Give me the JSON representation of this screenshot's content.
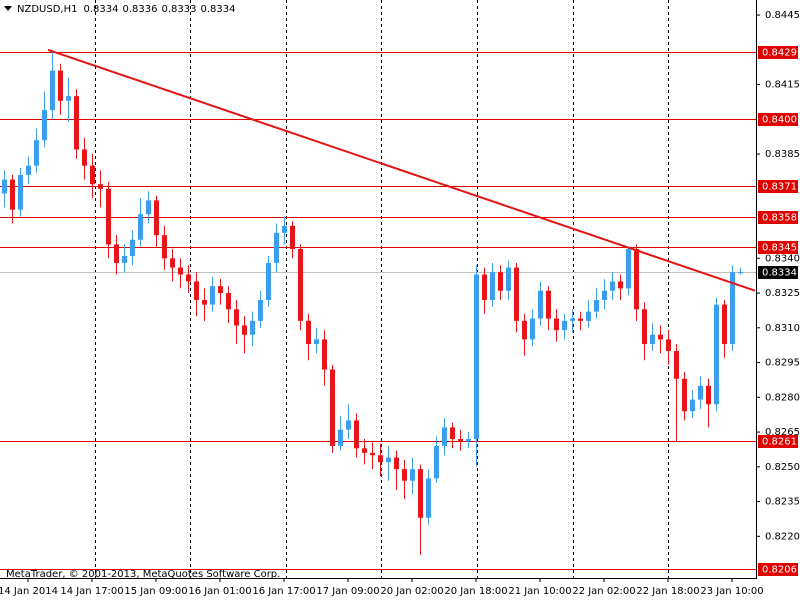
{
  "chart_data": {
    "type": "candlestick",
    "symbol": "NZDUSD,H1",
    "footer": "MetaTrader, © 2001-2013, MetaQuotes Software Corp.",
    "up_color": "#3a9ff0",
    "down_color": "#e8141a",
    "level_color": "#e00000",
    "current_color": "#c0c0c0",
    "trend_color": "#e31414",
    "grid": false,
    "ylim": [
      0.8202,
      0.84515
    ],
    "yticks": [
      {
        "value": 0.8445,
        "label": "0.8445"
      },
      {
        "value": 0.8415,
        "label": "0.8415"
      },
      {
        "value": 0.8385,
        "label": "0.8385"
      },
      {
        "value": 0.834,
        "label": "0.8340"
      },
      {
        "value": 0.8325,
        "label": "0.8325"
      },
      {
        "value": 0.831,
        "label": "0.8310"
      },
      {
        "value": 0.8295,
        "label": "0.8295"
      },
      {
        "value": 0.828,
        "label": "0.8280"
      },
      {
        "value": 0.8265,
        "label": "0.8265"
      },
      {
        "value": 0.825,
        "label": "0.8250"
      },
      {
        "value": 0.8235,
        "label": "0.8235"
      },
      {
        "value": 0.822,
        "label": "0.8220"
      }
    ],
    "levels": [
      {
        "value": 0.8429,
        "label": "0.8429"
      },
      {
        "value": 0.84,
        "label": "0.8400"
      },
      {
        "value": 0.8371,
        "label": "0.8371"
      },
      {
        "value": 0.8358,
        "label": "0.8358"
      },
      {
        "value": 0.8345,
        "label": "0.8345"
      },
      {
        "value": 0.8261,
        "label": "0.8261"
      },
      {
        "value": 0.8206,
        "label": "0.8206"
      }
    ],
    "current_price": {
      "value": 0.8334,
      "label": "0.8334"
    },
    "trendline": {
      "from": {
        "index": 5.5,
        "price": 0.843
      },
      "to": {
        "index": 93.875,
        "price": 0.8326
      }
    },
    "categories": [
      null,
      null,
      null,
      "14 Jan 2014",
      null,
      null,
      null,
      null,
      null,
      null,
      null,
      "14 Jan 17:00",
      null,
      null,
      null,
      null,
      null,
      null,
      null,
      "15 Jan 09:00",
      null,
      null,
      null,
      null,
      null,
      null,
      null,
      "16 Jan 01:00",
      null,
      null,
      null,
      null,
      null,
      null,
      null,
      "16 Jan 17:00",
      null,
      null,
      null,
      null,
      null,
      null,
      null,
      "17 Jan 09:00",
      null,
      null,
      null,
      null,
      null,
      null,
      null,
      "20 Jan 02:00",
      null,
      null,
      null,
      null,
      null,
      null,
      null,
      "20 Jan 18:00",
      null,
      null,
      null,
      null,
      null,
      null,
      null,
      "21 Jan 10:00",
      null,
      null,
      null,
      null,
      null,
      null,
      null,
      "22 Jan 02:00",
      null,
      null,
      null,
      null,
      null,
      null,
      null,
      "22 Jan 18:00",
      null,
      null,
      null,
      null,
      null,
      null,
      null,
      "23 Jan 10:00",
      null
    ],
    "open": [
      0.8368,
      0.8374,
      0.8361,
      0.8376,
      0.838,
      0.8391,
      0.8404,
      0.8421,
      0.8408,
      0.841,
      0.8387,
      0.838,
      0.8372,
      0.837,
      0.8346,
      0.8338,
      0.8341,
      0.8348,
      0.8359,
      0.8365,
      0.835,
      0.834,
      0.8336,
      0.8333,
      0.833,
      0.8322,
      0.832,
      0.8328,
      0.8325,
      0.8318,
      0.8311,
      0.8307,
      0.8313,
      0.8322,
      0.8338,
      0.8351,
      0.8354,
      0.8344,
      0.8313,
      0.8303,
      0.8305,
      0.8292,
      0.8259,
      0.8266,
      0.827,
      0.8258,
      0.8256,
      0.8255,
      0.8252,
      0.8254,
      0.8249,
      0.8244,
      0.8249,
      0.8228,
      0.8245,
      0.8259,
      0.8267,
      0.8262,
      0.8261,
      0.8262,
      0.8333,
      0.8322,
      0.8334,
      0.8326,
      0.8336,
      0.8313,
      0.8305,
      0.8314,
      0.8326,
      0.8314,
      0.8309,
      0.8313,
      0.8314,
      0.8313,
      0.8317,
      0.8322,
      0.8326,
      0.833,
      0.8327,
      0.8344,
      0.8318,
      0.8303,
      0.8307,
      0.8305,
      0.83,
      0.8288,
      0.8274,
      0.8279,
      0.8285,
      0.8277,
      0.832,
      0.8303,
      0.8334
    ],
    "high": [
      0.8378,
      0.8376,
      0.8379,
      0.8384,
      0.8396,
      0.8412,
      0.8429,
      0.8424,
      0.8418,
      0.8413,
      0.8392,
      0.8385,
      0.8378,
      0.8373,
      0.835,
      0.8346,
      0.8352,
      0.8366,
      0.8369,
      0.8367,
      0.8354,
      0.8344,
      0.834,
      0.8337,
      0.8334,
      0.8327,
      0.8332,
      0.8331,
      0.8328,
      0.8322,
      0.8315,
      0.8317,
      0.8326,
      0.8341,
      0.8355,
      0.8358,
      0.8356,
      0.8346,
      0.8316,
      0.831,
      0.8309,
      0.8294,
      0.8272,
      0.8277,
      0.8273,
      0.8262,
      0.8261,
      0.826,
      0.8259,
      0.8257,
      0.8253,
      0.8254,
      0.8251,
      0.8249,
      0.8263,
      0.8271,
      0.8269,
      0.8266,
      0.8265,
      0.8337,
      0.8336,
      0.8338,
      0.8337,
      0.8339,
      0.8338,
      0.8316,
      0.8318,
      0.833,
      0.8328,
      0.8318,
      0.8316,
      0.8318,
      0.8317,
      0.8322,
      0.8327,
      0.8331,
      0.8334,
      0.8333,
      0.8345,
      0.8346,
      0.8321,
      0.8312,
      0.8311,
      0.8309,
      0.8303,
      0.8291,
      0.8283,
      0.8289,
      0.8288,
      0.8323,
      0.8322,
      0.8337,
      0.8336
    ],
    "low": [
      0.8362,
      0.8355,
      0.8358,
      0.8372,
      0.8377,
      0.8388,
      0.84,
      0.8402,
      0.8399,
      0.8383,
      0.8374,
      0.8366,
      0.8362,
      0.834,
      0.8333,
      0.8334,
      0.8337,
      0.8345,
      0.8355,
      0.8345,
      0.8335,
      0.833,
      0.8327,
      0.8325,
      0.8315,
      0.8313,
      0.8317,
      0.832,
      0.8312,
      0.8303,
      0.8299,
      0.8302,
      0.831,
      0.8319,
      0.8334,
      0.8346,
      0.834,
      0.8309,
      0.8296,
      0.8299,
      0.8285,
      0.8256,
      0.8257,
      0.8262,
      0.8254,
      0.8251,
      0.8249,
      0.8246,
      0.8244,
      0.824,
      0.8236,
      0.8238,
      0.8212,
      0.8225,
      0.8243,
      0.8255,
      0.8258,
      0.8257,
      0.8258,
      0.825,
      0.8316,
      0.8319,
      0.8322,
      0.8322,
      0.8308,
      0.8298,
      0.8302,
      0.8311,
      0.8309,
      0.8304,
      0.8305,
      0.8308,
      0.8309,
      0.831,
      0.8314,
      0.8318,
      0.8322,
      0.8322,
      0.8324,
      0.8313,
      0.8296,
      0.83,
      0.8299,
      0.8294,
      0.8261,
      0.827,
      0.8271,
      0.8275,
      0.8267,
      0.8274,
      0.8297,
      0.83,
      0.8333
    ],
    "close": [
      0.8374,
      0.8361,
      0.8376,
      0.838,
      0.8391,
      0.8404,
      0.8421,
      0.8408,
      0.841,
      0.8387,
      0.838,
      0.8372,
      0.837,
      0.8346,
      0.8338,
      0.8341,
      0.8348,
      0.8359,
      0.8365,
      0.835,
      0.834,
      0.8336,
      0.8333,
      0.833,
      0.8322,
      0.832,
      0.8328,
      0.8325,
      0.8318,
      0.8311,
      0.8307,
      0.8313,
      0.8322,
      0.8338,
      0.8351,
      0.8354,
      0.8344,
      0.8313,
      0.8303,
      0.8305,
      0.8292,
      0.8259,
      0.8266,
      0.827,
      0.8258,
      0.8256,
      0.8255,
      0.8252,
      0.8254,
      0.8249,
      0.8244,
      0.8249,
      0.8228,
      0.8245,
      0.8259,
      0.8267,
      0.8262,
      0.8261,
      0.8262,
      0.8333,
      0.8322,
      0.8334,
      0.8326,
      0.8336,
      0.8313,
      0.8305,
      0.8314,
      0.8326,
      0.8314,
      0.8309,
      0.8313,
      0.8314,
      0.8313,
      0.8317,
      0.8322,
      0.8326,
      0.833,
      0.8327,
      0.8344,
      0.8318,
      0.8303,
      0.8307,
      0.8305,
      0.83,
      0.8288,
      0.8274,
      0.8279,
      0.8285,
      0.8277,
      0.832,
      0.8303,
      0.8334,
      0.8334
    ]
  }
}
